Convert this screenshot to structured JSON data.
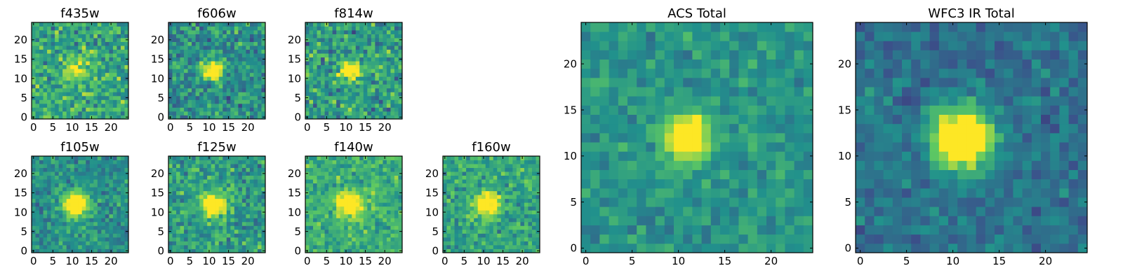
{
  "figure": {
    "colormap": "viridis",
    "colormap_stops": [
      "#440154",
      "#3b528b",
      "#21918c",
      "#5ec962",
      "#fde725"
    ]
  },
  "chart_data": [
    {
      "type": "heatmap",
      "title": "f435w",
      "grid_size": 25,
      "xlim": [
        0,
        24
      ],
      "ylim": [
        0,
        24
      ],
      "xticks": [
        "0",
        "5",
        "10",
        "15",
        "20"
      ],
      "yticks": [
        "0",
        "5",
        "10",
        "15",
        "20"
      ],
      "source_center": [
        11,
        12
      ],
      "source_sigma": 2.0,
      "source_amplitude": 0.25,
      "background_level": 0.6,
      "noise": 0.42,
      "seed": 11
    },
    {
      "type": "heatmap",
      "title": "f606w",
      "grid_size": 25,
      "xlim": [
        0,
        24
      ],
      "ylim": [
        0,
        24
      ],
      "xticks": [
        "0",
        "5",
        "10",
        "15",
        "20"
      ],
      "yticks": [
        "0",
        "5",
        "10",
        "15",
        "20"
      ],
      "source_center": [
        11,
        12
      ],
      "source_sigma": 1.6,
      "source_amplitude": 0.55,
      "background_level": 0.5,
      "noise": 0.4,
      "seed": 23
    },
    {
      "type": "heatmap",
      "title": "f814w",
      "grid_size": 25,
      "xlim": [
        0,
        24
      ],
      "ylim": [
        0,
        24
      ],
      "xticks": [
        "0",
        "5",
        "10",
        "15",
        "20"
      ],
      "yticks": [
        "0",
        "5",
        "10",
        "15",
        "20"
      ],
      "source_center": [
        11,
        12
      ],
      "source_sigma": 1.7,
      "source_amplitude": 0.5,
      "background_level": 0.55,
      "noise": 0.42,
      "seed": 37
    },
    {
      "type": "heatmap",
      "title": "f105w",
      "grid_size": 25,
      "xlim": [
        0,
        24
      ],
      "ylim": [
        0,
        24
      ],
      "xticks": [
        "0",
        "5",
        "10",
        "15",
        "20"
      ],
      "yticks": [
        "0",
        "5",
        "10",
        "15",
        "20"
      ],
      "source_center": [
        11,
        12
      ],
      "source_sigma": 2.2,
      "source_amplitude": 0.5,
      "background_level": 0.5,
      "noise": 0.3,
      "seed": 41
    },
    {
      "type": "heatmap",
      "title": "f125w",
      "grid_size": 25,
      "xlim": [
        0,
        24
      ],
      "ylim": [
        0,
        24
      ],
      "xticks": [
        "0",
        "5",
        "10",
        "15",
        "20"
      ],
      "yticks": [
        "0",
        "5",
        "10",
        "15",
        "20"
      ],
      "source_center": [
        11,
        12
      ],
      "source_sigma": 2.2,
      "source_amplitude": 0.45,
      "background_level": 0.55,
      "noise": 0.35,
      "seed": 53
    },
    {
      "type": "heatmap",
      "title": "f140w",
      "grid_size": 25,
      "xlim": [
        0,
        24
      ],
      "ylim": [
        0,
        24
      ],
      "xticks": [
        "0",
        "5",
        "10",
        "15",
        "20"
      ],
      "yticks": [
        "0",
        "5",
        "10",
        "15",
        "20"
      ],
      "source_center": [
        11,
        12
      ],
      "source_sigma": 2.4,
      "source_amplitude": 0.4,
      "background_level": 0.62,
      "noise": 0.3,
      "seed": 67
    },
    {
      "type": "heatmap",
      "title": "f160w",
      "grid_size": 25,
      "xlim": [
        0,
        24
      ],
      "ylim": [
        0,
        24
      ],
      "xticks": [
        "0",
        "5",
        "10",
        "15",
        "20"
      ],
      "yticks": [
        "0",
        "5",
        "10",
        "15",
        "20"
      ],
      "source_center": [
        11,
        12
      ],
      "source_sigma": 2.2,
      "source_amplitude": 0.42,
      "background_level": 0.58,
      "noise": 0.32,
      "seed": 79
    },
    {
      "type": "heatmap",
      "title": "ACS Total",
      "grid_size": 25,
      "xlim": [
        0,
        24
      ],
      "ylim": [
        0,
        24
      ],
      "xticks": [
        "0",
        "5",
        "10",
        "15",
        "20"
      ],
      "yticks": [
        "0",
        "5",
        "10",
        "15",
        "20"
      ],
      "source_center": [
        11,
        12
      ],
      "source_sigma": 1.6,
      "source_amplitude": 0.55,
      "background_level": 0.52,
      "noise": 0.22,
      "seed": 97
    },
    {
      "type": "heatmap",
      "title": "WFC3 IR Total",
      "grid_size": 25,
      "xlim": [
        0,
        24
      ],
      "ylim": [
        0,
        24
      ],
      "xticks": [
        "0",
        "5",
        "10",
        "15",
        "20"
      ],
      "yticks": [
        "0",
        "5",
        "10",
        "15",
        "20"
      ],
      "source_center": [
        11,
        12
      ],
      "source_sigma": 2.2,
      "source_amplitude": 0.62,
      "background_level": 0.38,
      "noise": 0.24,
      "seed": 113
    }
  ]
}
